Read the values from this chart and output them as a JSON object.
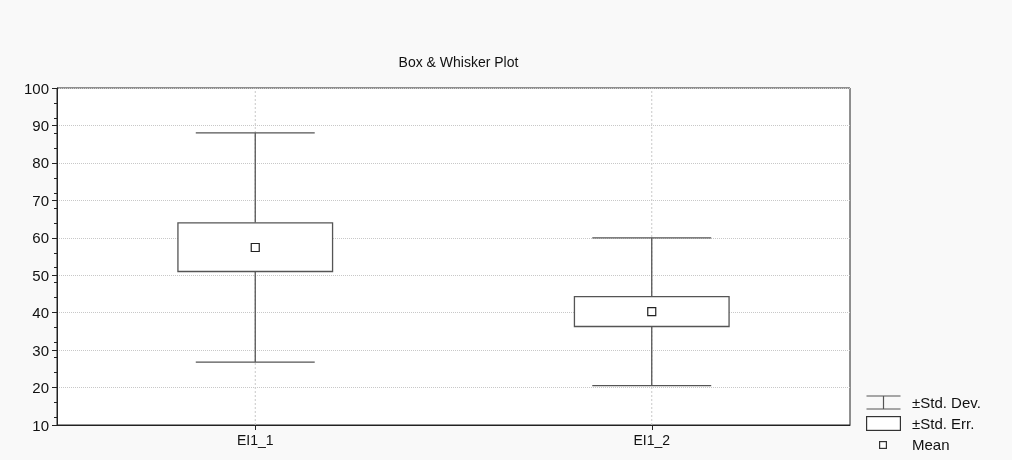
{
  "chart_data": {
    "type": "box",
    "title": "Box & Whisker Plot",
    "categories": [
      "EI1_1",
      "EI1_2"
    ],
    "boxes": [
      {
        "low": 26.8,
        "q1": 51,
        "median": 57.4,
        "q3": 64,
        "high": 88
      },
      {
        "low": 20.5,
        "q1": 36.3,
        "median": 40.3,
        "q3": 44.3,
        "high": 60
      }
    ],
    "color": "#555555",
    "ylim": [
      10,
      100
    ],
    "yticks": [
      10,
      20,
      30,
      40,
      50,
      60,
      70,
      80,
      90,
      100
    ],
    "grid": true,
    "annotations": [
      "±Std. Dev.",
      "±Std. Err.",
      "Mean"
    ]
  }
}
